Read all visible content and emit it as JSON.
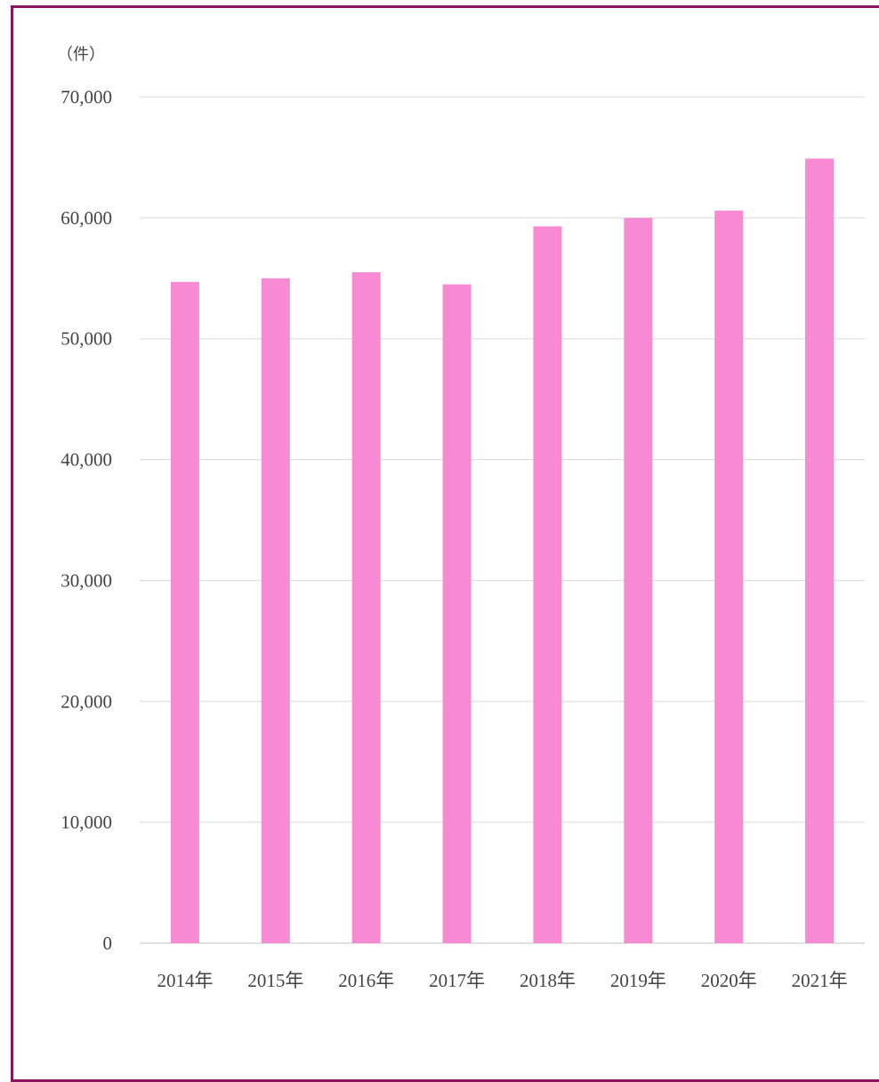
{
  "chart_data": {
    "type": "bar",
    "ylabel": "（件）",
    "categories": [
      "2014年",
      "2015年",
      "2016年",
      "2017年",
      "2018年",
      "2019年",
      "2020年",
      "2021年"
    ],
    "values": [
      54700,
      55000,
      55500,
      54500,
      59300,
      60000,
      60600,
      64900
    ],
    "ylim": [
      0,
      70000
    ],
    "yticks": [
      0,
      10000,
      20000,
      30000,
      40000,
      50000,
      60000,
      70000
    ],
    "ytick_labels": [
      "0",
      "10,000",
      "20,000",
      "30,000",
      "40,000",
      "50,000",
      "60,000",
      "70,000"
    ],
    "grid": true,
    "legend": "none",
    "colors": {
      "bar": "#f78ad3",
      "grid": "#d9d9d9",
      "frame": "#8a1560",
      "text": "#444444"
    }
  }
}
